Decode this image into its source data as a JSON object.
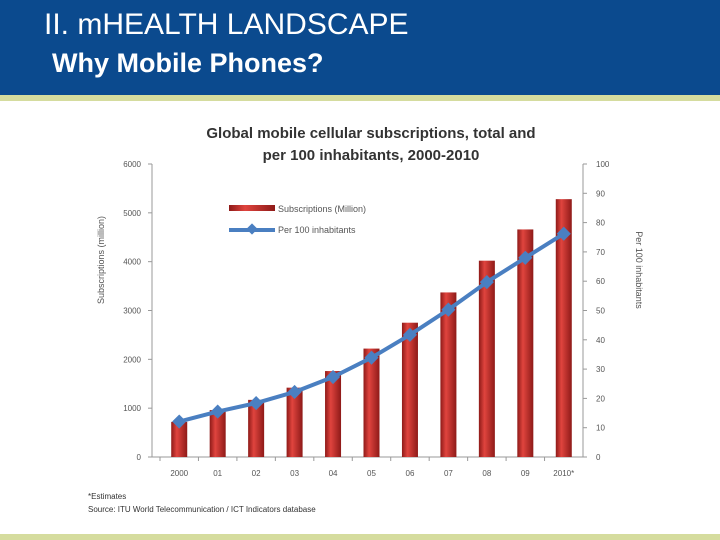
{
  "slide": {
    "title": "II. mHEALTH LANDSCAPE",
    "subtitle": "Why Mobile Phones?",
    "colors": {
      "header": "#0b4a8e",
      "rule": "#d5dc9e"
    }
  },
  "chart_data": {
    "type": "bar",
    "title_line1": "Global mobile cellular subscriptions, total and",
    "title_line2": "per 100 inhabitants, 2000-2010",
    "categories": [
      "2000",
      "01",
      "02",
      "03",
      "04",
      "05",
      "06",
      "07",
      "08",
      "09",
      "2010*"
    ],
    "ylabel": "Subscriptions (million)",
    "y2label": "Per 100 inhabitants",
    "ylim": [
      0,
      6000
    ],
    "y2lim": [
      0,
      100
    ],
    "yticks": [
      "0",
      "1000",
      "2000",
      "3000",
      "4000",
      "5000",
      "6000"
    ],
    "y2ticks": [
      "0",
      "10",
      "20",
      "30",
      "40",
      "50",
      "60",
      "70",
      "80",
      "90",
      "100"
    ],
    "legend_position": "top-left",
    "series": [
      {
        "name": "Subscriptions (Million)",
        "type": "bar",
        "axis": "left",
        "color": "#c8302c",
        "values": [
          720,
          960,
          1170,
          1420,
          1760,
          2220,
          2750,
          3370,
          4020,
          4660,
          5280
        ]
      },
      {
        "name": "Per 100 inhabitants",
        "type": "line",
        "axis": "right",
        "color": "#4a7fc1",
        "values": [
          12.1,
          15.5,
          18.4,
          22.2,
          27.3,
          33.9,
          41.7,
          50.3,
          59.7,
          68.0,
          76.2
        ]
      }
    ],
    "footnote": "*Estimates",
    "source": "Source: ITU World Telecommunication / ICT Indicators database"
  }
}
